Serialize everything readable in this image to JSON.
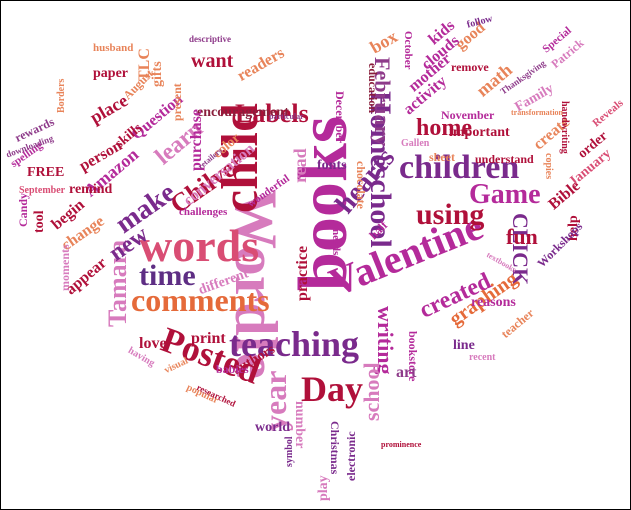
{
  "colors": {
    "crimson": "#b0103a",
    "magenta": "#b42a9a",
    "purple": "#7a2a8c",
    "violet": "#5e2e84",
    "pink": "#d77bbd",
    "salmon": "#e8845a",
    "orange": "#e56a3a",
    "rose": "#d94d74",
    "plum": "#8e3b8a",
    "wine": "#8a1f3c"
  },
  "words": [
    {
      "text": "books",
      "color": "magenta"
    },
    {
      "text": "Wordle",
      "color": "pink"
    },
    {
      "text": "child",
      "color": "crimson"
    },
    {
      "text": "words",
      "color": "rose"
    },
    {
      "text": "Valentine",
      "color": "magenta"
    },
    {
      "text": "Homeschool",
      "color": "purple"
    },
    {
      "text": "children",
      "color": "purple"
    },
    {
      "text": "teaching",
      "color": "purple"
    },
    {
      "text": "Posted",
      "color": "crimson"
    },
    {
      "text": "comments",
      "color": "orange"
    },
    {
      "text": "Day",
      "color": "crimson"
    },
    {
      "text": "year",
      "color": "pink"
    },
    {
      "text": "time",
      "color": "violet"
    },
    {
      "text": "using",
      "color": "crimson"
    },
    {
      "text": "Game",
      "color": "magenta"
    },
    {
      "text": "Tamara",
      "color": "pink"
    },
    {
      "text": "hearts",
      "color": "purple"
    },
    {
      "text": "make",
      "color": "purple"
    },
    {
      "text": "Chilver",
      "color": "crimson"
    },
    {
      "text": "Labels",
      "color": "crimson"
    },
    {
      "text": "learn",
      "color": "pink"
    },
    {
      "text": "new",
      "color": "purple"
    },
    {
      "text": "home",
      "color": "crimson"
    },
    {
      "text": "created",
      "color": "magenta"
    },
    {
      "text": "writing",
      "color": "magenta"
    },
    {
      "text": "school",
      "color": "pink"
    },
    {
      "text": "CLICK",
      "color": "purple"
    },
    {
      "text": "fun",
      "color": "crimson"
    },
    {
      "text": "graphing",
      "color": "orange"
    },
    {
      "text": "February",
      "color": "plum"
    },
    {
      "text": "want",
      "color": "crimson"
    },
    {
      "text": "print",
      "color": "crimson"
    },
    {
      "text": "love",
      "color": "crimson"
    },
    {
      "text": "practice",
      "color": "crimson"
    },
    {
      "text": "read",
      "color": "pink"
    },
    {
      "text": "different",
      "color": "pink"
    },
    {
      "text": "conversation",
      "color": "pink"
    },
    {
      "text": "encouragement",
      "color": "wine"
    },
    {
      "text": "purchase",
      "color": "magenta"
    },
    {
      "text": "readers",
      "color": "salmon"
    },
    {
      "text": "color",
      "color": "salmon"
    },
    {
      "text": "place",
      "color": "crimson"
    },
    {
      "text": "Question",
      "color": "magenta"
    },
    {
      "text": "person",
      "color": "crimson"
    },
    {
      "text": "Amazon",
      "color": "magenta"
    },
    {
      "text": "remind",
      "color": "crimson"
    },
    {
      "text": "skills",
      "color": "crimson"
    },
    {
      "text": "change",
      "color": "salmon"
    },
    {
      "text": "begin",
      "color": "crimson"
    },
    {
      "text": "appear",
      "color": "crimson"
    },
    {
      "text": "moments",
      "color": "pink"
    },
    {
      "text": "FREE",
      "color": "crimson"
    },
    {
      "text": "September",
      "color": "rose"
    },
    {
      "text": "fonts",
      "color": "purple"
    },
    {
      "text": "chocolate",
      "color": "salmon"
    },
    {
      "text": "education",
      "color": "wine"
    },
    {
      "text": "box",
      "color": "salmon"
    },
    {
      "text": "kids",
      "color": "magenta"
    },
    {
      "text": "good",
      "color": "salmon"
    },
    {
      "text": "clouds",
      "color": "magenta"
    },
    {
      "text": "mother",
      "color": "magenta"
    },
    {
      "text": "activity",
      "color": "magenta"
    },
    {
      "text": "math",
      "color": "salmon"
    },
    {
      "text": "remove",
      "color": "crimson"
    },
    {
      "text": "November",
      "color": "magenta"
    },
    {
      "text": "important",
      "color": "crimson"
    },
    {
      "text": "Family",
      "color": "pink"
    },
    {
      "text": "create",
      "color": "salmon"
    },
    {
      "text": "understand",
      "color": "crimson"
    },
    {
      "text": "sheet",
      "color": "salmon"
    },
    {
      "text": "Bible",
      "color": "crimson"
    },
    {
      "text": "January",
      "color": "rose"
    },
    {
      "text": "order",
      "color": "crimson"
    },
    {
      "text": "help",
      "color": "crimson"
    },
    {
      "text": "Workshops",
      "color": "purple"
    },
    {
      "text": "reasons",
      "color": "magenta"
    },
    {
      "text": "line",
      "color": "purple"
    },
    {
      "text": "bookstore",
      "color": "magenta"
    },
    {
      "text": "art",
      "color": "plum"
    },
    {
      "text": "teacher",
      "color": "salmon"
    },
    {
      "text": "authors",
      "color": "crimson"
    },
    {
      "text": "babies",
      "color": "magenta"
    },
    {
      "text": "number",
      "color": "pink"
    },
    {
      "text": "world",
      "color": "purple"
    },
    {
      "text": "Christmas",
      "color": "purple"
    },
    {
      "text": "play",
      "color": "pink"
    },
    {
      "text": "electronic",
      "color": "purple"
    },
    {
      "text": "symbol",
      "color": "purple"
    },
    {
      "text": "popular",
      "color": "salmon"
    },
    {
      "text": "visual",
      "color": "salmon"
    },
    {
      "text": "TLC",
      "color": "salmon"
    },
    {
      "text": "gifts",
      "color": "salmon"
    },
    {
      "text": "paper",
      "color": "crimson"
    },
    {
      "text": "August",
      "color": "salmon"
    },
    {
      "text": "husband",
      "color": "salmon"
    },
    {
      "text": "present",
      "color": "salmon"
    },
    {
      "text": "rewards",
      "color": "plum"
    },
    {
      "text": "spelling",
      "color": "magenta"
    },
    {
      "text": "downloading",
      "color": "plum"
    },
    {
      "text": "Candy",
      "color": "magenta"
    },
    {
      "text": "tool",
      "color": "crimson"
    },
    {
      "text": "Special",
      "color": "magenta"
    },
    {
      "text": "Patrick",
      "color": "pink"
    },
    {
      "text": "follow",
      "color": "purple"
    },
    {
      "text": "Thanksgiving",
      "color": "plum"
    },
    {
      "text": "handwriting",
      "color": "crimson"
    },
    {
      "text": "Reveals",
      "color": "rose"
    },
    {
      "text": "transformation",
      "color": "salmon"
    },
    {
      "text": "copies",
      "color": "salmon"
    },
    {
      "text": "Gallen",
      "color": "pink"
    },
    {
      "text": "December",
      "color": "magenta"
    },
    {
      "text": "challenges",
      "color": "magenta"
    },
    {
      "text": "wonderful",
      "color": "magenta"
    },
    {
      "text": "needs",
      "color": "magenta"
    },
    {
      "text": "half",
      "color": "magenta"
    },
    {
      "text": "having",
      "color": "pink"
    },
    {
      "text": "Borders",
      "color": "salmon"
    },
    {
      "text": "researched",
      "color": "crimson"
    },
    {
      "text": "October",
      "color": "magenta"
    },
    {
      "text": "descriptive",
      "color": "plum"
    },
    {
      "text": "particular",
      "color": "plum"
    },
    {
      "text": "retailers",
      "color": "plum"
    },
    {
      "text": "textbooks",
      "color": "pink"
    },
    {
      "text": "recent",
      "color": "pink"
    },
    {
      "text": "prominence",
      "color": "crimson"
    }
  ]
}
